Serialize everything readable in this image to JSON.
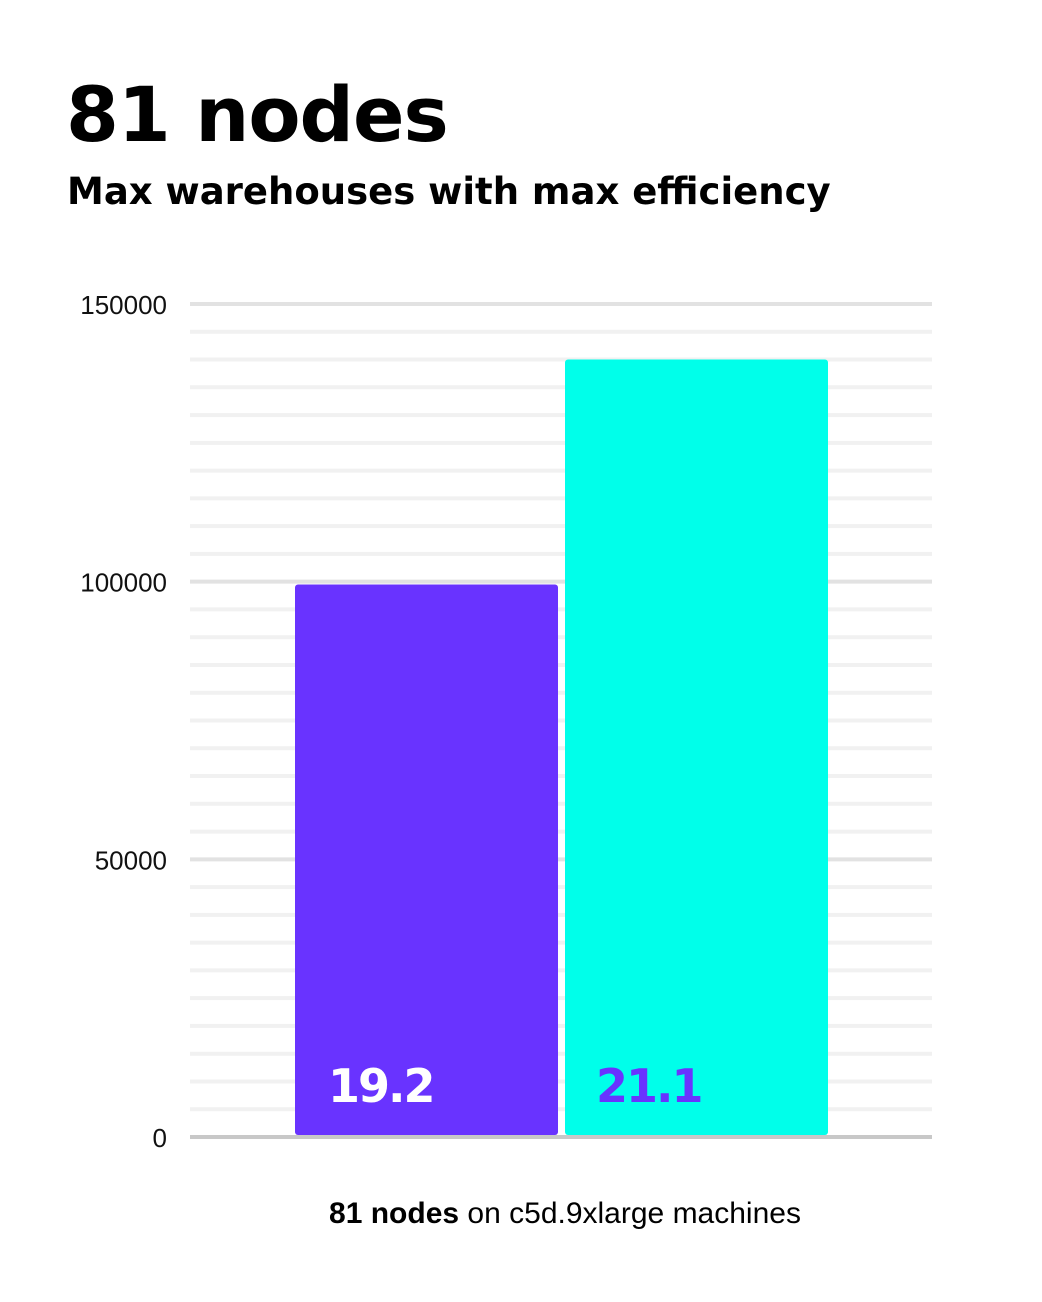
{
  "header": {
    "title": "81 nodes",
    "subtitle": "Max warehouses with max efficiency"
  },
  "caption": {
    "bold": "81 nodes",
    "rest": " on c5d.9xlarge machines"
  },
  "chart_data": {
    "type": "bar",
    "title": "Max warehouses with max efficiency",
    "ylim": [
      0,
      150000
    ],
    "yticks": [
      0,
      50000,
      100000,
      150000
    ],
    "ytick_labels": [
      "0",
      "50000",
      "100000",
      "150000"
    ],
    "minor_grid_step": 5000,
    "grid": true,
    "xlabel": "81 nodes on c5d.9xlarge machines",
    "bars": [
      {
        "value": 99500,
        "label": "19.2",
        "color": "#6933FF",
        "label_color": "#FFFFFF"
      },
      {
        "value": 140000,
        "label": "21.1",
        "color": "#00FFEA",
        "label_color": "#6933FF"
      }
    ]
  }
}
